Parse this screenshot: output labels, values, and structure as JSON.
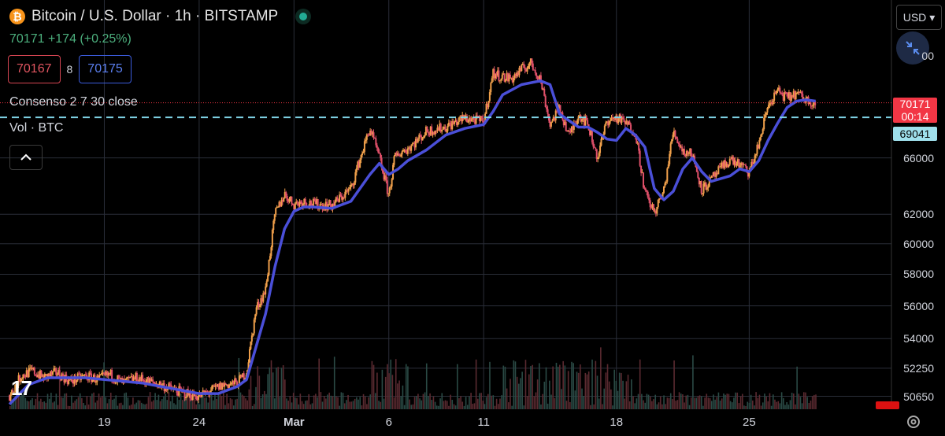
{
  "header": {
    "title": "Bitcoin / U.S. Dollar · 1h · BITSTAMP",
    "last_price_line": "70171 +174 (+0.25%)",
    "bid": "70167",
    "spread": "8",
    "ask": "70175",
    "indicator_label": "Consenso 2 7 30 close",
    "volume_label": "Vol · BTC"
  },
  "toolbar": {
    "currency": "USD",
    "currency_chevron": "▾"
  },
  "tags": {
    "last_price": "70171",
    "countdown": "00:14",
    "level_line": "69041"
  },
  "colors": {
    "up": "#f0a04b",
    "down": "#e0506a",
    "ma": "#4a4fd8",
    "level": "#7fd3e6",
    "last": "#f23645",
    "grid": "#2a2e39"
  },
  "icons": {
    "logo": "bitcoin-icon",
    "status": "market-open-icon",
    "collapse": "chevron-up-icon",
    "zoom": "collapse-arrows-icon",
    "settings": "gear-icon",
    "brand": "tradingview-logo"
  },
  "brand_text": "17",
  "chart_data": {
    "type": "line",
    "ylabel": "",
    "xlabel": "",
    "y_scale": "log",
    "ylim": [
      50100,
      73600
    ],
    "y_ticks": [
      "66000",
      "62000",
      "60000",
      "58000",
      "56000",
      "54000",
      "52250",
      "50650"
    ],
    "x_ticks": [
      {
        "label": "19",
        "day": 19
      },
      {
        "label": "24",
        "day": 24
      },
      {
        "label": "Mar",
        "day": 29,
        "bold": true
      },
      {
        "label": "6",
        "day": 34
      },
      {
        "label": "11",
        "day": 39
      },
      {
        "label": "18",
        "day": 46
      },
      {
        "label": "25",
        "day": 53
      }
    ],
    "xlim_days": [
      13.5,
      60.5
    ],
    "last_price": 70171,
    "horizontal_level": 69041,
    "series": [
      {
        "type": "price",
        "x": [
          14.0,
          14.6,
          15.2,
          15.8,
          16.5,
          17.2,
          18.0,
          18.7,
          19.3,
          20.0,
          20.7,
          21.3,
          22.0,
          22.7,
          23.3,
          24.0,
          24.7,
          25.3,
          26.0,
          26.5,
          27.0,
          27.5,
          28.0,
          28.5,
          29.0,
          29.5,
          30.0,
          31.0,
          32.0,
          33.0,
          33.5,
          34.0,
          34.3,
          34.7,
          35.0,
          35.5,
          36.0,
          37.0,
          38.0,
          39.0,
          39.5,
          40.0,
          40.5,
          41.0,
          41.5,
          42.0,
          42.5,
          43.0,
          43.5,
          44.0,
          44.5,
          45.0,
          45.5,
          46.0,
          46.5,
          47.0,
          47.5,
          48.0,
          48.5,
          49.0,
          49.5,
          50.0,
          50.5,
          51.0,
          51.5,
          52.0,
          52.5,
          53.0,
          53.5,
          54.0,
          54.5,
          55.0,
          55.5,
          56.0,
          56.5
        ],
        "y": [
          50700,
          51800,
          52100,
          51700,
          52000,
          51500,
          51800,
          51600,
          51900,
          51400,
          51700,
          51500,
          51300,
          51000,
          50800,
          50650,
          51000,
          51300,
          51400,
          52000,
          55800,
          57000,
          62000,
          63400,
          62700,
          62900,
          62700,
          62600,
          63800,
          68200,
          66000,
          63300,
          66000,
          66500,
          66700,
          67300,
          68000,
          68300,
          69000,
          68700,
          72500,
          72200,
          72100,
          72800,
          73300,
          72000,
          68500,
          69800,
          67600,
          69300,
          68500,
          66000,
          68800,
          69000,
          68600,
          67900,
          63500,
          62100,
          63600,
          68000,
          66500,
          66300,
          63700,
          64400,
          65200,
          65900,
          65500,
          64900,
          67000,
          70000,
          71100,
          70500,
          70900,
          70400,
          70171
        ]
      },
      {
        "type": "ma",
        "x": [
          14.0,
          15.0,
          16.0,
          17.0,
          18.0,
          19.0,
          20.0,
          21.0,
          22.0,
          23.0,
          24.0,
          25.0,
          26.0,
          26.5,
          27.0,
          27.5,
          28.0,
          28.5,
          29.0,
          29.5,
          30.0,
          31.0,
          32.0,
          33.0,
          33.5,
          34.0,
          34.5,
          35.0,
          36.0,
          37.0,
          38.0,
          39.0,
          39.5,
          40.0,
          41.0,
          42.0,
          42.5,
          43.0,
          44.0,
          44.5,
          45.0,
          45.5,
          46.0,
          46.5,
          47.0,
          47.5,
          48.0,
          48.5,
          49.0,
          49.5,
          50.0,
          50.5,
          51.0,
          52.0,
          52.5,
          53.0,
          53.5,
          54.0,
          54.5,
          55.0,
          55.5,
          56.0,
          56.5
        ],
        "y": [
          50200,
          51300,
          51700,
          51700,
          51700,
          51600,
          51500,
          51400,
          51200,
          51000,
          50800,
          50800,
          51200,
          51600,
          53500,
          55500,
          58500,
          61000,
          62200,
          62500,
          62500,
          62400,
          62900,
          64800,
          65600,
          64800,
          65200,
          65800,
          66600,
          67700,
          68200,
          68500,
          69500,
          70800,
          71600,
          71900,
          71600,
          69300,
          68300,
          68300,
          67900,
          67400,
          67300,
          68200,
          67700,
          66800,
          63800,
          63000,
          63600,
          65200,
          66000,
          65000,
          64300,
          64700,
          65200,
          65000,
          65800,
          67300,
          68600,
          69800,
          70300,
          70400,
          70300
        ]
      }
    ]
  }
}
